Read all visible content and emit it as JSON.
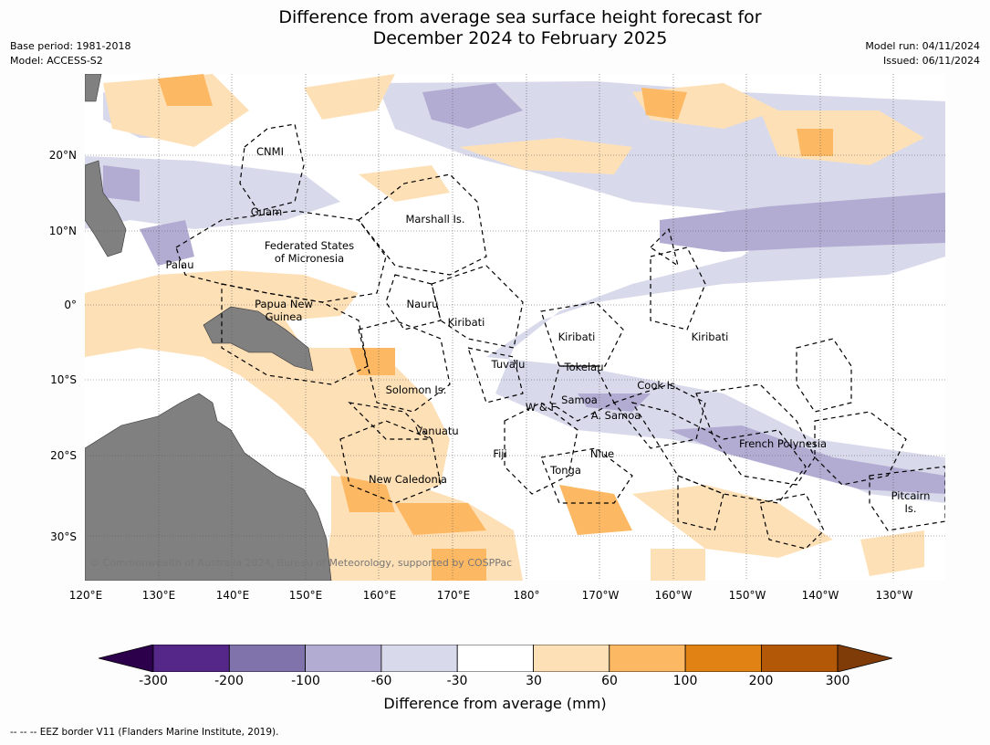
{
  "title": "Difference from average sea surface height forecast for\nDecember 2024 to February 2025",
  "meta_left": [
    "Base period: 1981-2018",
    "Model: ACCESS-S2"
  ],
  "meta_right": [
    "Model run: 04/11/2024",
    "Issued: 06/11/2024"
  ],
  "map": {
    "lon_ticks": [
      "120°E",
      "130°E",
      "140°E",
      "150°E",
      "160°E",
      "170°E",
      "180°",
      "170°W",
      "160°W",
      "150°W",
      "140°W",
      "130°W"
    ],
    "lat_ticks": [
      "20°N",
      "10°N",
      "0°",
      "10°S",
      "20°S",
      "30°S"
    ],
    "places": [
      "CNMI",
      "Guam",
      "Marshall Is.",
      "Federated States\nof Micronesia",
      "Palau",
      "Nauru",
      "Papua New\nGuinea",
      "Kiribati",
      "Kiribati",
      "Kiribati",
      "Tuvalu",
      "Tokelau",
      "Solomon Is.",
      "Cook Is.",
      "Samoa",
      "W & F",
      "A. Samoa",
      "Vanuatu",
      "Fiji",
      "Niue",
      "French Polynesia",
      "Tonga",
      "New Caledonia",
      "Pitcairn\nIs."
    ],
    "copyright": "© Commonwealth of Australia 2024, Bureau of Meteorology, supported by COSPPac",
    "colors": {
      "land": "#808080",
      "grid": "#555555",
      "eez": "#000000"
    }
  },
  "colorbar": {
    "ticks": [
      "-300",
      "-200",
      "-100",
      "-60",
      "-30",
      "30",
      "60",
      "100",
      "200",
      "300"
    ],
    "colors": [
      "#2d004b",
      "#542788",
      "#8073ac",
      "#b2abd2",
      "#d8daeb",
      "#ffffff",
      "#fee0b6",
      "#fdb863",
      "#e08214",
      "#b35806",
      "#7f3b08"
    ],
    "label": "Difference from average (mm)"
  },
  "legend_note": "--  --  -- EEZ border V11 (Flanders Marine Institute, 2019)."
}
